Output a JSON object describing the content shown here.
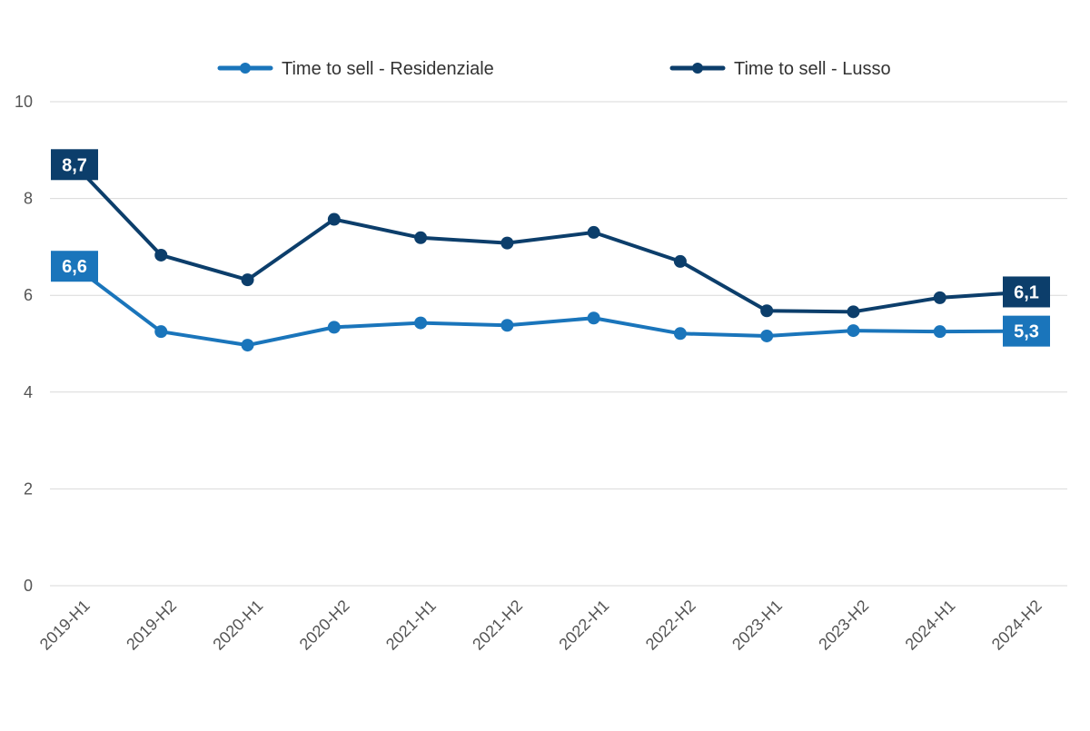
{
  "chart_data": {
    "type": "line",
    "title": "",
    "xlabel": "",
    "ylabel": "",
    "categories": [
      "2019-H1",
      "2019-H2",
      "2020-H1",
      "2020-H2",
      "2021-H1",
      "2021-H2",
      "2022-H1",
      "2022-H2",
      "2023-H1",
      "2023-H2",
      "2024-H1",
      "2024-H2"
    ],
    "ylim": [
      0,
      10
    ],
    "yticks": [
      0,
      2,
      4,
      6,
      8,
      10
    ],
    "grid": true,
    "legend_position": "top",
    "series": [
      {
        "name": "Time to sell - Residenziale",
        "color": "#1a75bb",
        "values": [
          6.6,
          5.25,
          4.97,
          5.34,
          5.43,
          5.38,
          5.53,
          5.21,
          5.16,
          5.27,
          5.25,
          5.26
        ],
        "start_label": "6,6",
        "end_label": "5,3"
      },
      {
        "name": "Time to sell - Lusso",
        "color": "#0c3e6b",
        "values": [
          8.7,
          6.83,
          6.32,
          7.57,
          7.19,
          7.08,
          7.3,
          6.7,
          5.68,
          5.66,
          5.95,
          6.07
        ],
        "start_label": "8,7",
        "end_label": "6,1"
      }
    ]
  }
}
